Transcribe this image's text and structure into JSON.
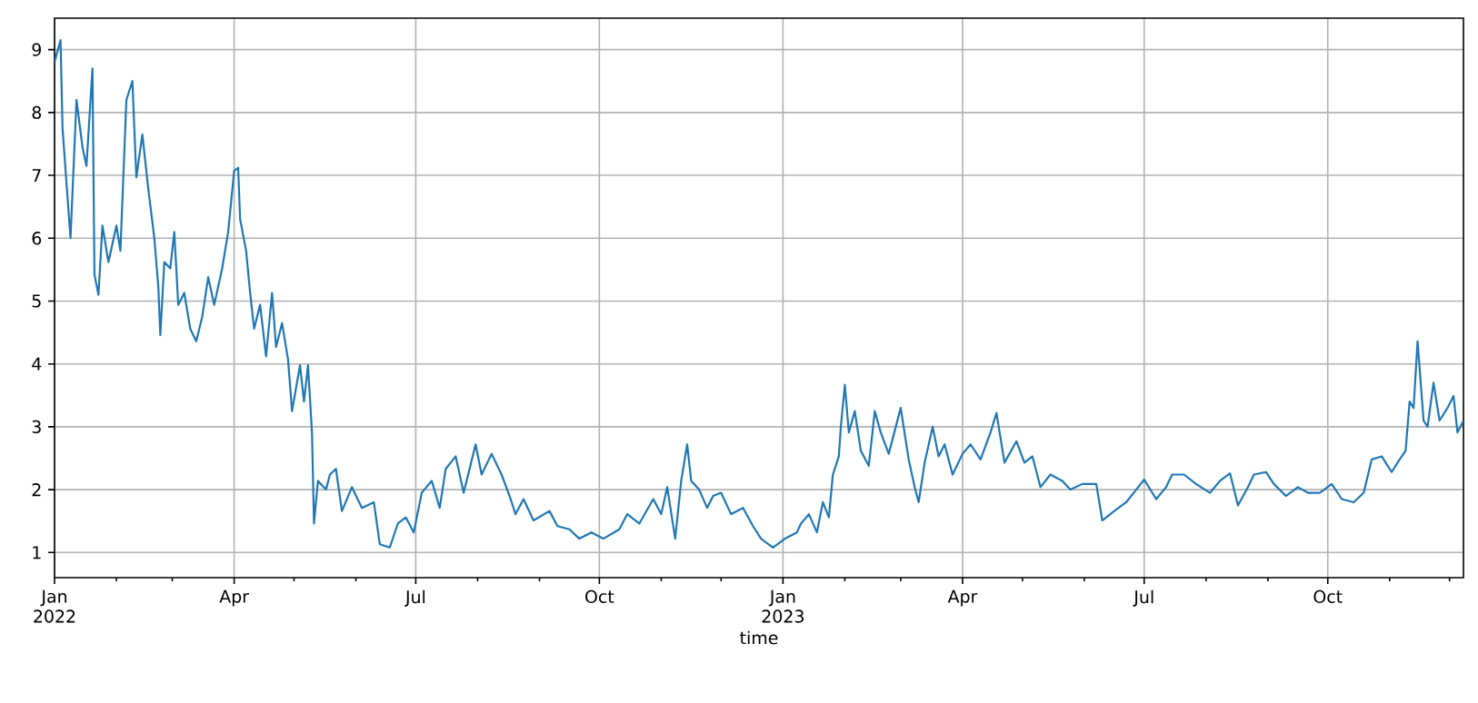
{
  "chart_data": {
    "type": "line",
    "xlabel": "time",
    "xlim": [
      "2022-01-01",
      "2023-12-08"
    ],
    "ylim": [
      0.6,
      9.5
    ],
    "yticks": [
      1,
      2,
      3,
      4,
      5,
      6,
      7,
      8,
      9
    ],
    "xticks": [
      {
        "value": "2022-01-01",
        "label": "Jan 2022"
      },
      {
        "value": "2022-02-01",
        "label": null
      },
      {
        "value": "2022-03-01",
        "label": null
      },
      {
        "value": "2022-04-01",
        "label": "Apr"
      },
      {
        "value": "2022-05-01",
        "label": null
      },
      {
        "value": "2022-06-01",
        "label": null
      },
      {
        "value": "2022-07-01",
        "label": "Jul"
      },
      {
        "value": "2022-08-01",
        "label": null
      },
      {
        "value": "2022-09-01",
        "label": null
      },
      {
        "value": "2022-10-01",
        "label": "Oct"
      },
      {
        "value": "2022-11-01",
        "label": null
      },
      {
        "value": "2022-12-01",
        "label": null
      },
      {
        "value": "2023-01-01",
        "label": "Jan 2023"
      },
      {
        "value": "2023-02-01",
        "label": null
      },
      {
        "value": "2023-03-01",
        "label": null
      },
      {
        "value": "2023-04-01",
        "label": "Apr"
      },
      {
        "value": "2023-05-01",
        "label": null
      },
      {
        "value": "2023-06-01",
        "label": null
      },
      {
        "value": "2023-07-01",
        "label": "Jul"
      },
      {
        "value": "2023-08-01",
        "label": null
      },
      {
        "value": "2023-09-01",
        "label": null
      },
      {
        "value": "2023-10-01",
        "label": "Oct"
      },
      {
        "value": "2023-11-01",
        "label": null
      },
      {
        "value": "2023-12-01",
        "label": null
      }
    ],
    "grid": true,
    "series": [
      {
        "color": "#1f77b4",
        "x": [
          "2022-01-01",
          "2022-01-04",
          "2022-01-05",
          "2022-01-07",
          "2022-01-09",
          "2022-01-12",
          "2022-01-15",
          "2022-01-17",
          "2022-01-20",
          "2022-01-21",
          "2022-01-23",
          "2022-01-25",
          "2022-01-28",
          "2022-02-01",
          "2022-02-03",
          "2022-02-06",
          "2022-02-09",
          "2022-02-11",
          "2022-02-14",
          "2022-02-17",
          "2022-02-20",
          "2022-02-22",
          "2022-02-23",
          "2022-02-25",
          "2022-02-28",
          "2022-03-02",
          "2022-03-04",
          "2022-03-07",
          "2022-03-10",
          "2022-03-13",
          "2022-03-16",
          "2022-03-19",
          "2022-03-22",
          "2022-03-26",
          "2022-03-29",
          "2022-04-01",
          "2022-04-03",
          "2022-04-04",
          "2022-04-07",
          "2022-04-09",
          "2022-04-11",
          "2022-04-14",
          "2022-04-17",
          "2022-04-20",
          "2022-04-22",
          "2022-04-25",
          "2022-04-28",
          "2022-04-30",
          "2022-05-04",
          "2022-05-06",
          "2022-05-08",
          "2022-05-10",
          "2022-05-11",
          "2022-05-13",
          "2022-05-17",
          "2022-05-19",
          "2022-05-22",
          "2022-05-25",
          "2022-05-30",
          "2022-06-04",
          "2022-06-10",
          "2022-06-13",
          "2022-06-18",
          "2022-06-22",
          "2022-06-26",
          "2022-06-30",
          "2022-07-04",
          "2022-07-09",
          "2022-07-13",
          "2022-07-16",
          "2022-07-21",
          "2022-07-25",
          "2022-07-31",
          "2022-08-03",
          "2022-08-08",
          "2022-08-13",
          "2022-08-17",
          "2022-08-20",
          "2022-08-24",
          "2022-08-29",
          "2022-09-06",
          "2022-09-10",
          "2022-09-16",
          "2022-09-21",
          "2022-09-27",
          "2022-10-03",
          "2022-10-11",
          "2022-10-15",
          "2022-10-21",
          "2022-10-28",
          "2022-11-01",
          "2022-11-04",
          "2022-11-08",
          "2022-11-11",
          "2022-11-14",
          "2022-11-16",
          "2022-11-20",
          "2022-11-24",
          "2022-11-27",
          "2022-12-01",
          "2022-12-06",
          "2022-12-12",
          "2022-12-17",
          "2022-12-21",
          "2022-12-27",
          "2023-01-02",
          "2023-01-08",
          "2023-01-10",
          "2023-01-14",
          "2023-01-18",
          "2023-01-21",
          "2023-01-24",
          "2023-01-26",
          "2023-01-29",
          "2023-01-30",
          "2023-02-01",
          "2023-02-03",
          "2023-02-06",
          "2023-02-09",
          "2023-02-13",
          "2023-02-16",
          "2023-02-19",
          "2023-02-23",
          "2023-03-01",
          "2023-03-05",
          "2023-03-08",
          "2023-03-10",
          "2023-03-13",
          "2023-03-17",
          "2023-03-20",
          "2023-03-23",
          "2023-03-27",
          "2023-04-01",
          "2023-04-05",
          "2023-04-10",
          "2023-04-15",
          "2023-04-18",
          "2023-04-22",
          "2023-04-28",
          "2023-05-02",
          "2023-05-06",
          "2023-05-10",
          "2023-05-15",
          "2023-05-21",
          "2023-05-25",
          "2023-05-31",
          "2023-06-07",
          "2023-06-10",
          "2023-06-16",
          "2023-06-22",
          "2023-06-27",
          "2023-07-01",
          "2023-07-07",
          "2023-07-12",
          "2023-07-15",
          "2023-07-21",
          "2023-07-27",
          "2023-08-03",
          "2023-08-08",
          "2023-08-13",
          "2023-08-17",
          "2023-08-22",
          "2023-08-25",
          "2023-08-31",
          "2023-09-04",
          "2023-09-10",
          "2023-09-16",
          "2023-09-21",
          "2023-09-27",
          "2023-10-03",
          "2023-10-08",
          "2023-10-14",
          "2023-10-19",
          "2023-10-23",
          "2023-10-28",
          "2023-11-02",
          "2023-11-06",
          "2023-11-09",
          "2023-11-11",
          "2023-11-13",
          "2023-11-15",
          "2023-11-18",
          "2023-11-20",
          "2023-11-23",
          "2023-11-26",
          "2023-11-30",
          "2023-12-03",
          "2023-12-05",
          "2023-12-08"
        ],
        "values": [
          8.8,
          9.15,
          7.75,
          6.87,
          6.0,
          8.2,
          7.45,
          7.15,
          8.7,
          5.42,
          5.1,
          6.2,
          5.62,
          6.2,
          5.8,
          8.2,
          8.5,
          6.97,
          7.65,
          6.78,
          6.0,
          5.23,
          4.46,
          5.62,
          5.52,
          6.1,
          4.94,
          5.13,
          4.56,
          4.36,
          4.75,
          5.38,
          4.94,
          5.52,
          6.1,
          7.07,
          7.12,
          6.3,
          5.8,
          5.13,
          4.56,
          4.94,
          4.12,
          5.13,
          4.27,
          4.65,
          4.07,
          3.25,
          3.98,
          3.4,
          3.98,
          2.91,
          1.46,
          2.14,
          2.0,
          2.24,
          2.33,
          1.66,
          2.04,
          1.71,
          1.8,
          1.13,
          1.08,
          1.46,
          1.56,
          1.32,
          1.95,
          2.14,
          1.71,
          2.33,
          2.53,
          1.95,
          2.72,
          2.24,
          2.57,
          2.24,
          1.9,
          1.61,
          1.85,
          1.51,
          1.66,
          1.42,
          1.37,
          1.22,
          1.32,
          1.22,
          1.37,
          1.61,
          1.46,
          1.85,
          1.61,
          2.04,
          1.22,
          2.14,
          2.72,
          2.14,
          2.0,
          1.71,
          1.9,
          1.95,
          1.61,
          1.71,
          1.42,
          1.22,
          1.08,
          1.22,
          1.32,
          1.46,
          1.61,
          1.32,
          1.8,
          1.56,
          2.24,
          2.53,
          3.0,
          3.67,
          2.91,
          3.25,
          2.62,
          2.38,
          3.25,
          2.91,
          2.57,
          3.3,
          2.48,
          2.04,
          1.8,
          2.43,
          3.0,
          2.53,
          2.72,
          2.24,
          2.57,
          2.72,
          2.48,
          2.91,
          3.22,
          2.43,
          2.77,
          2.43,
          2.53,
          2.04,
          2.24,
          2.14,
          2.0,
          2.09,
          2.09,
          1.51,
          1.66,
          1.8,
          2.0,
          2.16,
          1.85,
          2.04,
          2.24,
          2.24,
          2.09,
          1.95,
          2.14,
          2.26,
          1.75,
          2.04,
          2.24,
          2.28,
          2.09,
          1.9,
          2.04,
          1.95,
          1.95,
          2.09,
          1.85,
          1.8,
          1.95,
          2.48,
          2.53,
          2.28,
          2.48,
          2.62,
          3.4,
          3.3,
          4.36,
          3.1,
          3.0,
          3.7,
          3.1,
          3.3,
          3.49,
          2.91,
          3.1
        ]
      }
    ]
  }
}
